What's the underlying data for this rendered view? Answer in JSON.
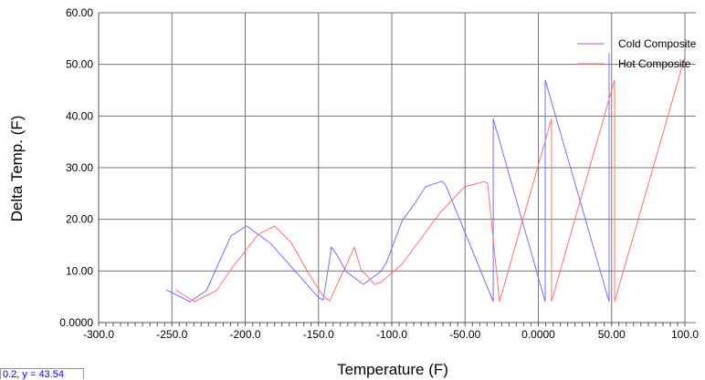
{
  "chart_data": {
    "type": "line",
    "xlabel": "Temperature (F)",
    "ylabel": "Delta Temp. (F)",
    "xlim": [
      -300,
      100
    ],
    "ylim": [
      0,
      60
    ],
    "x_ticks": [
      "-300.0",
      "-250.0",
      "-200.0",
      "-150.0",
      "-100.0",
      "-50.00",
      "0.0000",
      "50.00",
      "100.0"
    ],
    "y_ticks": [
      "0.0000",
      "10.00",
      "20.00",
      "30.00",
      "40.00",
      "50.00",
      "60.00"
    ],
    "grid": true,
    "legend_position": "top-right",
    "series": [
      {
        "name": "Cold Composite",
        "color": "#7070ff",
        "points": [
          [
            -253.9,
            6.35
          ],
          [
            -237.7,
            4.06
          ],
          [
            -226.5,
            6.18
          ],
          [
            -209.7,
            16.8
          ],
          [
            -199.1,
            18.7
          ],
          [
            -182.9,
            15.4
          ],
          [
            -149.8,
            4.8
          ],
          [
            -146.7,
            4.4
          ],
          [
            -141.1,
            14.6
          ],
          [
            -137.4,
            13.1
          ],
          [
            -131.2,
            9.9
          ],
          [
            -123.7,
            8.3
          ],
          [
            -119.3,
            7.4
          ],
          [
            -107.5,
            9.9
          ],
          [
            -103.7,
            11.6
          ],
          [
            -93.1,
            19.6
          ],
          [
            -83.8,
            23.3
          ],
          [
            -77.0,
            26.3
          ],
          [
            -65.7,
            27.4
          ],
          [
            -63.2,
            26.6
          ],
          [
            -30.8,
            4.06
          ],
          [
            -30.8,
            39.5
          ],
          [
            4.7,
            4.06
          ],
          [
            4.7,
            47.0
          ],
          [
            48.3,
            4.06
          ],
          [
            48.3,
            52.2
          ]
        ]
      },
      {
        "name": "Hot Composite",
        "color": "#ff7070",
        "points": [
          [
            -247.7,
            6.35
          ],
          [
            -234.6,
            4.06
          ],
          [
            -219.6,
            6.18
          ],
          [
            -208.4,
            10.8
          ],
          [
            -191.0,
            17.1
          ],
          [
            -179.8,
            18.7
          ],
          [
            -168.5,
            15.4
          ],
          [
            -156.7,
            9.5
          ],
          [
            -146.7,
            5.1
          ],
          [
            -142.4,
            4.2
          ],
          [
            -125.5,
            14.6
          ],
          [
            -120.6,
            9.9
          ],
          [
            -118.1,
            9.5
          ],
          [
            -111.8,
            7.4
          ],
          [
            -106.9,
            7.9
          ],
          [
            -93.1,
            11.3
          ],
          [
            -66.4,
            21.5
          ],
          [
            -50.2,
            26.3
          ],
          [
            -37.1,
            27.3
          ],
          [
            -34.6,
            27.0
          ],
          [
            -26.5,
            4.06
          ],
          [
            9.0,
            39.5
          ],
          [
            9.0,
            4.06
          ],
          [
            52.0,
            47.0
          ],
          [
            52.0,
            4.06
          ],
          [
            100.0,
            51.5
          ]
        ]
      }
    ]
  },
  "readout": "0.2, y = 43.54"
}
